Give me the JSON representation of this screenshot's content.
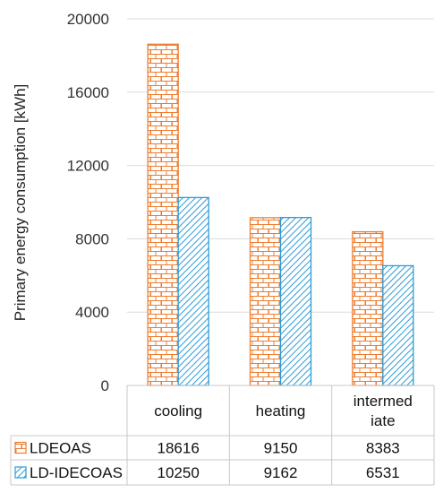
{
  "chart_data": {
    "type": "bar",
    "ylabel": "Primary energy consumption [kWh]",
    "ylim": [
      0,
      20000
    ],
    "yticks": [
      0,
      4000,
      8000,
      12000,
      16000,
      20000
    ],
    "categories": [
      [
        "cooling"
      ],
      [
        "heating"
      ],
      [
        "intermed",
        "iate"
      ]
    ],
    "series": [
      {
        "name": "LDEOAS",
        "values": [
          18616,
          9150,
          8383
        ],
        "color": "#ed7d31",
        "pattern": "brick"
      },
      {
        "name": "LD-IDECOAS",
        "values": [
          10250,
          9162,
          6531
        ],
        "color": "#2e9bd6",
        "pattern": "diagonal"
      }
    ],
    "grid": true,
    "legend": "data-table"
  }
}
